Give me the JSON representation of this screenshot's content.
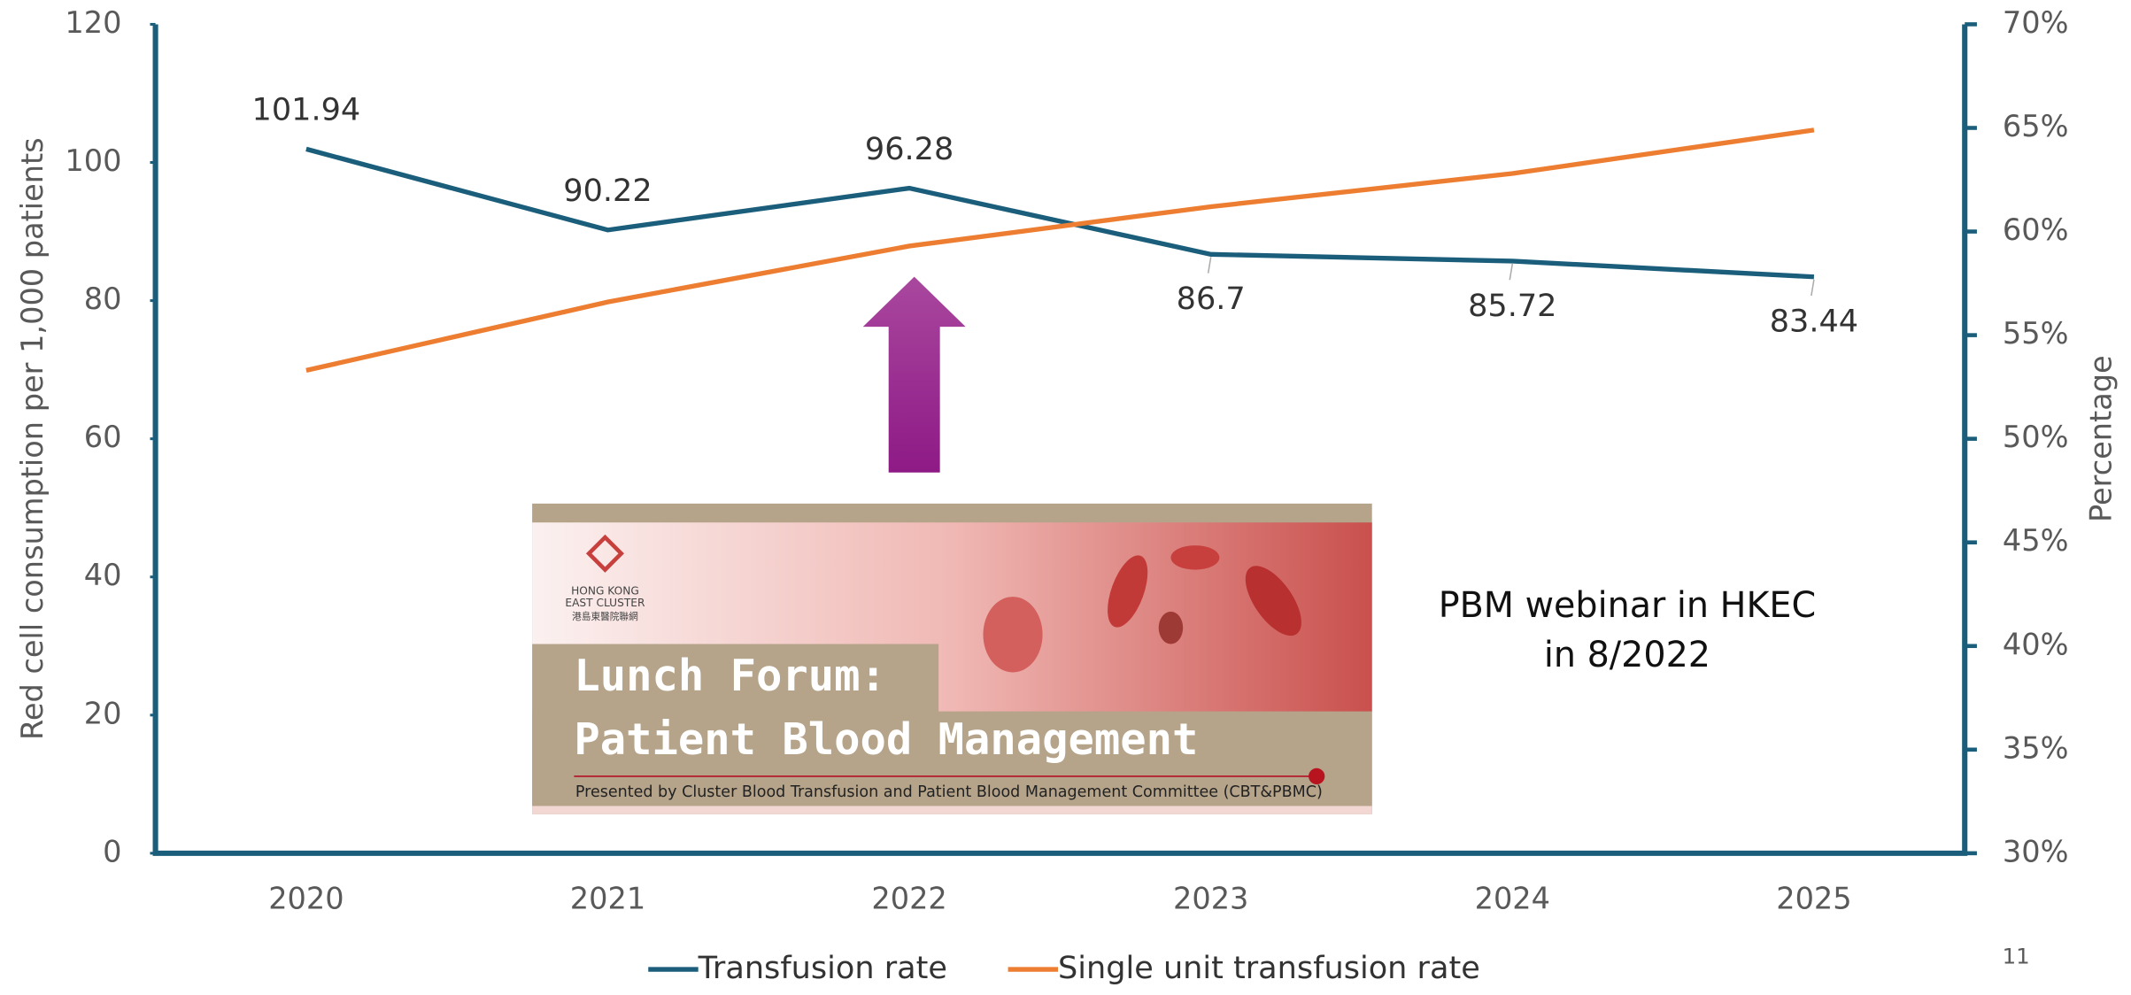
{
  "chart_data": {
    "type": "line",
    "categories": [
      "2020",
      "2021",
      "2022",
      "2023",
      "2024",
      "2025"
    ],
    "series": [
      {
        "name": "Transfusion rate",
        "color": "#1b5e7b",
        "values": [
          101.94,
          90.22,
          96.28,
          86.7,
          85.72,
          83.44
        ],
        "data_labels": true
      },
      {
        "name": "Single unit transfusion rate",
        "color": "#ed7d31",
        "values": [
          53.3,
          56.6,
          59.3,
          61.2,
          62.8,
          64.9
        ],
        "axis": "y2"
      }
    ],
    "ylabel": "Red cell consumption per 1,000 patients",
    "y2label": "Percentage",
    "ylim": [
      0,
      120
    ],
    "yticks": [
      0,
      20,
      40,
      60,
      80,
      100,
      120
    ],
    "y2lim": [
      30,
      70
    ],
    "y2ticks": [
      {
        "value": 30,
        "label": "30%"
      },
      {
        "value": 35,
        "label": "35%"
      },
      {
        "value": 40,
        "label": "40%"
      },
      {
        "value": 45,
        "label": "45%"
      },
      {
        "value": 50,
        "label": "50%"
      },
      {
        "value": 55,
        "label": "55%"
      },
      {
        "value": 60,
        "label": "60%"
      },
      {
        "value": 65,
        "label": "65%"
      },
      {
        "value": 70,
        "label": "70%"
      }
    ],
    "legend": "bottom",
    "annotation": [
      "PBM webinar in HKEC",
      "in 8/2022"
    ],
    "banner": {
      "org": [
        "HONG KONG",
        "EAST CLUSTER",
        "港島東醫院聯網"
      ],
      "title": [
        "Lunch Forum:",
        "Patient Blood Management"
      ],
      "subtitle": "Presented by Cluster Blood Transfusion and Patient Blood Management Committee (CBT&PBMC)"
    }
  },
  "page_number": "11"
}
